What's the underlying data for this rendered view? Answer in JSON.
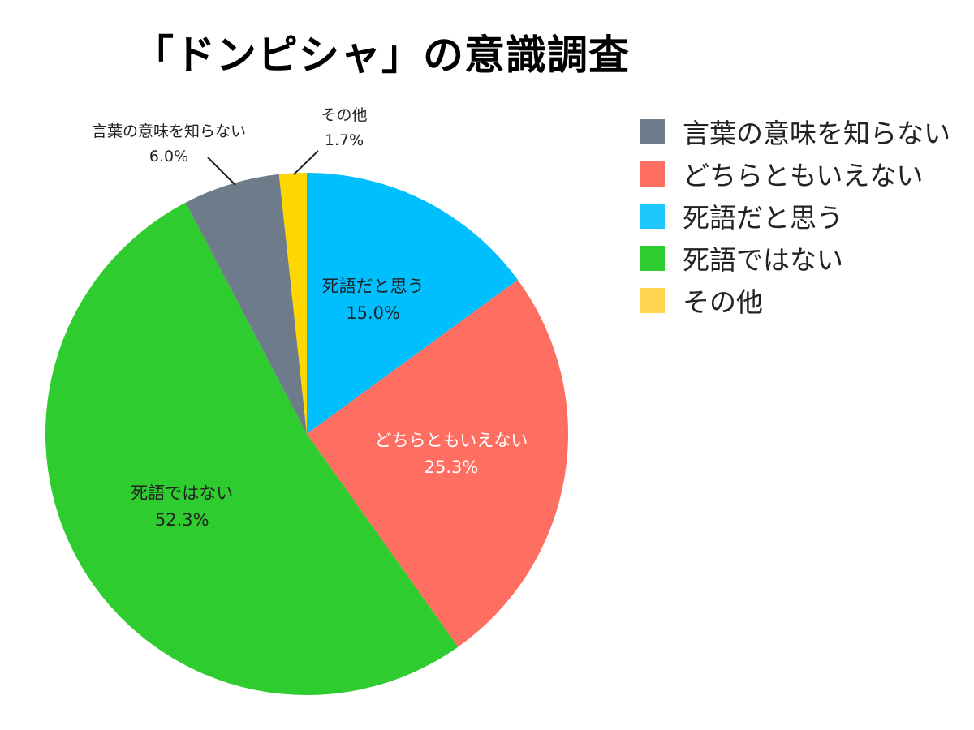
{
  "chart_data": {
    "type": "pie",
    "title": "「ドンピシャ」の意識調査",
    "start_angle_deg": 0,
    "direction": "clockwise",
    "legend_position": "right",
    "slices": [
      {
        "label": "死語だと思う",
        "value": 15.0,
        "value_label": "15.0%",
        "color": "#00BFFF",
        "label_color": "#222222",
        "label_placement": "inside"
      },
      {
        "label": "どちらともいえない",
        "value": 25.3,
        "value_label": "25.3%",
        "color": "#FF6F61",
        "label_color": "#ffffff",
        "label_placement": "inside"
      },
      {
        "label": "死語ではない",
        "value": 52.3,
        "value_label": "52.3%",
        "color": "#2ECC2E",
        "label_color": "#222222",
        "label_placement": "inside"
      },
      {
        "label": "言葉の意味を知らない",
        "value": 6.0,
        "value_label": "6.0%",
        "color": "#6E7B8B",
        "label_color": "#222222",
        "label_placement": "outside"
      },
      {
        "label": "その他",
        "value": 1.7,
        "value_label": "1.7%",
        "color": "#FFD700",
        "label_color": "#222222",
        "label_placement": "outside"
      }
    ],
    "legend": [
      {
        "label": "言葉の意味を知らない",
        "color": "#6E7B8B"
      },
      {
        "label": "どちらともいえない",
        "color": "#FF6F61"
      },
      {
        "label": "死語だと思う",
        "color": "#1EC8FF"
      },
      {
        "label": "死語ではない",
        "color": "#2ECC2E"
      },
      {
        "label": "その他",
        "color": "#FFD54F"
      }
    ]
  }
}
